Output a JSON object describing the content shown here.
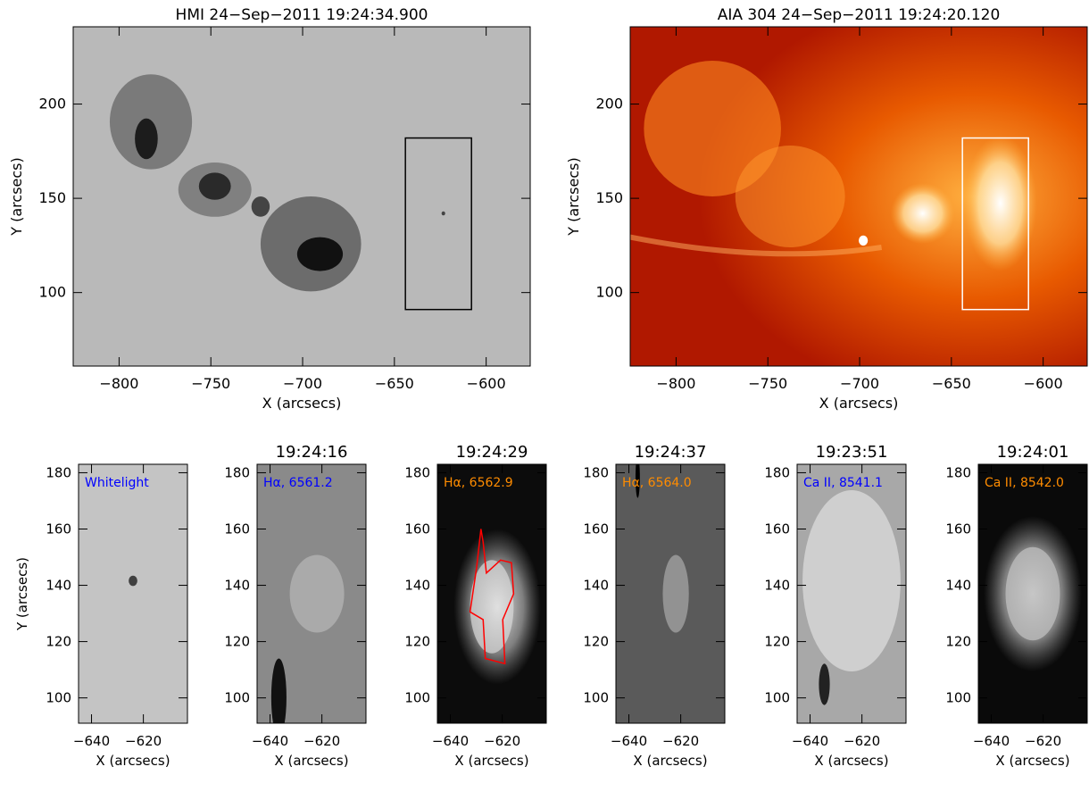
{
  "panels": [
    {
      "title": "HMI 24−Sep−2011 19:24:34.900",
      "xlabel": "X (arcsecs)",
      "ylabel": "Y (arcsecs)",
      "xlim": [
        -825,
        -576
      ],
      "ylim": [
        61,
        241
      ],
      "xticks": [
        {
          "value": -800,
          "label": "−800"
        },
        {
          "value": -750,
          "label": "−750"
        },
        {
          "value": -700,
          "label": "−700"
        },
        {
          "value": -650,
          "label": "−650"
        },
        {
          "value": -600,
          "label": "−600"
        }
      ],
      "yticks": [
        100,
        150,
        200
      ],
      "box": {
        "x": [
          -644,
          -608
        ],
        "y": [
          91,
          182
        ]
      },
      "box_color": "#000000"
    },
    {
      "title": "AIA 304 24−Sep−2011 19:24:20.120",
      "xlabel": "X (arcsecs)",
      "ylabel": "Y (arcsecs)",
      "xlim": [
        -825,
        -576
      ],
      "ylim": [
        61,
        241
      ],
      "xticks": [
        {
          "value": -800,
          "label": "−800"
        },
        {
          "value": -750,
          "label": "−750"
        },
        {
          "value": -700,
          "label": "−700"
        },
        {
          "value": -650,
          "label": "−650"
        },
        {
          "value": -600,
          "label": "−600"
        }
      ],
      "yticks": [
        100,
        150,
        200
      ],
      "box": {
        "x": [
          -644,
          -608
        ],
        "y": [
          91,
          182
        ]
      },
      "box_color": "#ffffff"
    },
    {
      "xlabel": "X (arcsecs)",
      "ylabel": "Y (arcsecs)",
      "label": "Whitelight",
      "label_color": "#0000ff",
      "xlim": [
        -645,
        -603
      ],
      "ylim": [
        91,
        183
      ],
      "xticks": [
        {
          "value": -640,
          "label": "−640"
        },
        {
          "value": -620,
          "label": "−620"
        }
      ],
      "yticks": [
        100,
        120,
        140,
        160,
        180
      ]
    },
    {
      "title": "19:24:16",
      "xlabel": "X (arcsecs)",
      "label": "Hα, 6561.2",
      "label_color": "#0000ff",
      "xlim": [
        -645,
        -603
      ],
      "ylim": [
        91,
        183
      ],
      "xticks": [
        {
          "value": -640,
          "label": "−640"
        },
        {
          "value": -620,
          "label": "−620"
        }
      ],
      "yticks": [
        100,
        120,
        140,
        160,
        180
      ]
    },
    {
      "title": "19:24:29",
      "xlabel": "X (arcsecs)",
      "label": "Hα, 6562.9",
      "label_color": "#ff8c00",
      "xlim": [
        -645,
        -603
      ],
      "ylim": [
        91,
        183
      ],
      "xticks": [
        {
          "value": -640,
          "label": "−640"
        },
        {
          "value": -620,
          "label": "−620"
        }
      ],
      "yticks": [
        100,
        120,
        140,
        160,
        180
      ]
    },
    {
      "title": "19:24:37",
      "xlabel": "X (arcsecs)",
      "label": "Hα, 6564.0",
      "label_color": "#ff8c00",
      "xlim": [
        -645,
        -603
      ],
      "ylim": [
        91,
        183
      ],
      "xticks": [
        {
          "value": -640,
          "label": "−640"
        },
        {
          "value": -620,
          "label": "−620"
        }
      ],
      "yticks": [
        100,
        120,
        140,
        160,
        180
      ]
    },
    {
      "title": "19:23:51",
      "xlabel": "X (arcsecs)",
      "label": "Ca II, 8541.1",
      "label_color": "#0000ff",
      "xlim": [
        -645,
        -603
      ],
      "ylim": [
        91,
        183
      ],
      "xticks": [
        {
          "value": -640,
          "label": "−640"
        },
        {
          "value": -620,
          "label": "−620"
        }
      ],
      "yticks": [
        100,
        120,
        140,
        160,
        180
      ]
    },
    {
      "title": "19:24:01",
      "xlabel": "X (arcsecs)",
      "label": "Ca II, 8542.0",
      "label_color": "#ff8c00",
      "xlim": [
        -645,
        -603
      ],
      "ylim": [
        91,
        183
      ],
      "xticks": [
        {
          "value": -640,
          "label": "−640"
        },
        {
          "value": -620,
          "label": "−620"
        }
      ],
      "yticks": [
        100,
        120,
        140,
        160,
        180
      ]
    }
  ]
}
